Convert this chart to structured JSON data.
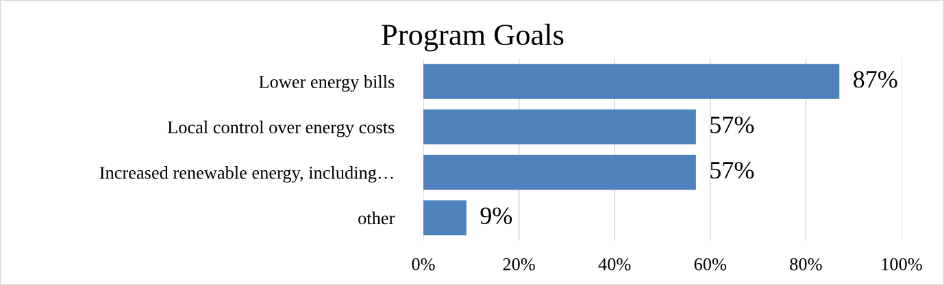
{
  "chart_data": {
    "type": "bar",
    "orientation": "horizontal",
    "title": "Program Goals",
    "categories": [
      "Lower energy bills",
      "Local control over energy costs",
      "Increased renewable energy, including…",
      "other"
    ],
    "values": [
      87,
      57,
      57,
      9
    ],
    "color": "#4f81bd",
    "value_labels": [
      "87%",
      "57%",
      "57%",
      "9%"
    ],
    "xlim": [
      0,
      100
    ],
    "xticks": [
      {
        "value": 0,
        "label": "0%"
      },
      {
        "value": 20,
        "label": "20%"
      },
      {
        "value": 40,
        "label": "40%"
      },
      {
        "value": 60,
        "label": "60%"
      },
      {
        "value": 80,
        "label": "80%"
      },
      {
        "value": 100,
        "label": "100%"
      }
    ],
    "grid": "x",
    "legend": false
  }
}
